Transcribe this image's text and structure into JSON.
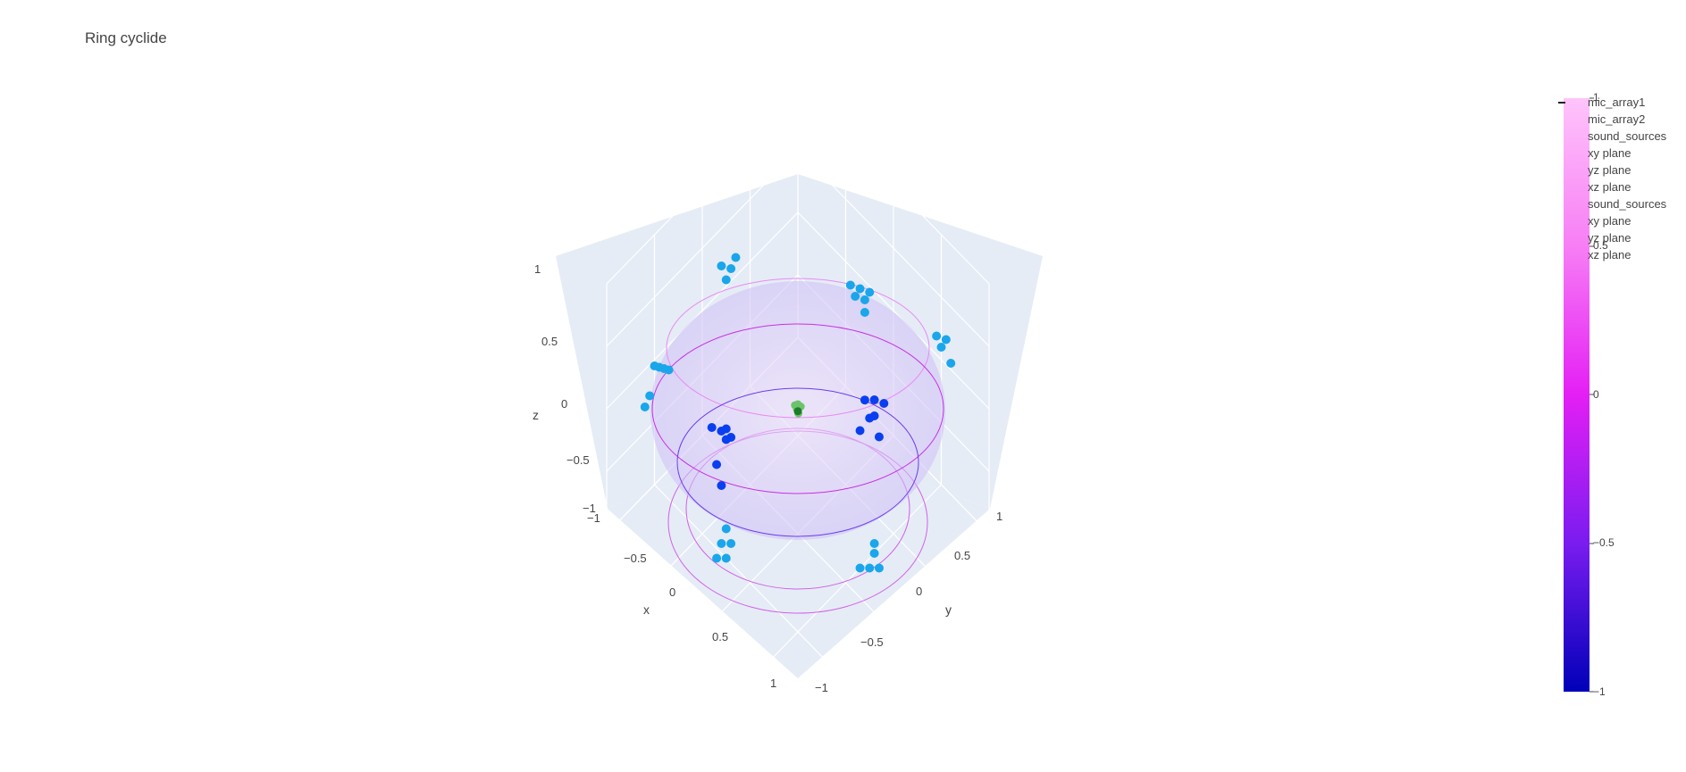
{
  "chart_data": {
    "type": "scatter",
    "title": "Ring cyclide",
    "scene": {
      "xaxis": {
        "title": "x",
        "range": [
          -1,
          1
        ],
        "ticks": [
          "−1",
          "−0.5",
          "0",
          "0.5",
          "1"
        ]
      },
      "yaxis": {
        "title": "y",
        "range": [
          -1,
          1
        ],
        "ticks": [
          "−1",
          "−0.5",
          "0",
          "0.5",
          "1"
        ]
      },
      "zaxis": {
        "title": "z",
        "range": [
          -1,
          1
        ],
        "ticks": [
          "−1",
          "−0.5",
          "0",
          "0.5",
          "1"
        ]
      },
      "background": "#e5ecf6",
      "grid": true
    },
    "series": [
      {
        "name": "mic_array1",
        "type": "scatter3d",
        "color": "#6bc46b",
        "points": [
          [
            0,
            0,
            0
          ],
          [
            0.02,
            0.01,
            0.02
          ],
          [
            -0.02,
            0.01,
            0.01
          ],
          [
            0.01,
            -0.02,
            0.02
          ],
          [
            -0.01,
            -0.01,
            0.02
          ],
          [
            0.015,
            0.02,
            -0.01
          ]
        ]
      },
      {
        "name": "mic_array2",
        "type": "scatter3d",
        "color": "#1e7b2a",
        "points": [
          [
            0,
            0,
            -0.02
          ]
        ]
      },
      {
        "name": "sound_sources",
        "type": "scatter3d",
        "color": "#0a3ff0",
        "points": [
          [
            -0.35,
            0.45,
            0.15
          ],
          [
            -0.3,
            0.5,
            0.1
          ],
          [
            -0.2,
            0.55,
            0.2
          ],
          [
            -0.25,
            0.6,
            0.05
          ],
          [
            -0.15,
            0.5,
            0.1
          ],
          [
            -0.35,
            0.55,
            0.2
          ],
          [
            -0.28,
            0.42,
            0.18
          ],
          [
            0.45,
            -0.35,
            -0.1
          ],
          [
            0.4,
            -0.3,
            -0.15
          ],
          [
            0.5,
            -0.25,
            -0.05
          ],
          [
            0.35,
            -0.4,
            -0.2
          ],
          [
            0.55,
            -0.3,
            -0.25
          ],
          [
            0.45,
            -0.45,
            -0.15
          ],
          [
            0.6,
            -0.2,
            -0.3
          ]
        ]
      },
      {
        "name": "xy plane",
        "type": "projection",
        "color": "#1aa6ea",
        "points": [
          [
            -0.35,
            0.45
          ],
          [
            -0.3,
            0.5
          ],
          [
            -0.2,
            0.55
          ],
          [
            -0.25,
            0.6
          ],
          [
            -0.15,
            0.5
          ],
          [
            0.45,
            -0.35
          ],
          [
            0.4,
            -0.3
          ],
          [
            0.5,
            -0.25
          ],
          [
            0.35,
            -0.4
          ],
          [
            0.55,
            -0.3
          ]
        ]
      },
      {
        "name": "yz plane",
        "type": "projection",
        "color": "#1aa6ea",
        "points": [
          [
            0.45,
            0.15
          ],
          [
            0.5,
            0.1
          ],
          [
            0.55,
            0.2
          ],
          [
            0.6,
            0.05
          ],
          [
            -0.35,
            -0.1
          ],
          [
            -0.3,
            -0.15
          ],
          [
            -0.25,
            -0.05
          ],
          [
            -0.4,
            -0.2
          ],
          [
            -0.3,
            -0.25
          ],
          [
            -0.45,
            -0.15
          ]
        ]
      },
      {
        "name": "xz plane",
        "type": "projection",
        "color": "#1aa6ea",
        "points": [
          [
            -0.35,
            0.15
          ],
          [
            -0.3,
            0.1
          ],
          [
            -0.2,
            0.2
          ],
          [
            -0.25,
            0.05
          ],
          [
            0.45,
            -0.1
          ],
          [
            0.4,
            -0.15
          ],
          [
            0.5,
            -0.05
          ],
          [
            0.35,
            -0.2
          ],
          [
            0.55,
            -0.25
          ],
          [
            0.6,
            -0.3
          ]
        ]
      },
      {
        "name": "sound_sources",
        "type": "scatter3d",
        "color": "#1aa6ea",
        "points": []
      },
      {
        "name": "xy plane",
        "type": "surface",
        "color": "#c99af0",
        "points": []
      },
      {
        "name": "yz plane",
        "type": "surface",
        "color": "#c99af0",
        "points": []
      },
      {
        "name": "xz plane",
        "type": "surface",
        "color": "#c99af0",
        "points": []
      }
    ],
    "surface": {
      "type": "ring cyclide",
      "colorscale": [
        "#0000b8",
        "#7a1cf0",
        "#e41ff5",
        "#f77ef5",
        "#ffc4fb"
      ]
    },
    "colorbar": {
      "range": [
        -1,
        1
      ],
      "ticks": [
        -1,
        -0.5,
        0,
        0.5,
        1
      ],
      "tick_labels": [
        "−1",
        "−0.5",
        "0",
        "0.5",
        "1"
      ]
    }
  },
  "legend": {
    "items": [
      "mic_array1",
      "mic_array2",
      "sound_sources",
      "xy plane",
      "yz plane",
      "xz plane",
      "sound_sources",
      "xy plane",
      "yz plane",
      "xz plane"
    ]
  }
}
